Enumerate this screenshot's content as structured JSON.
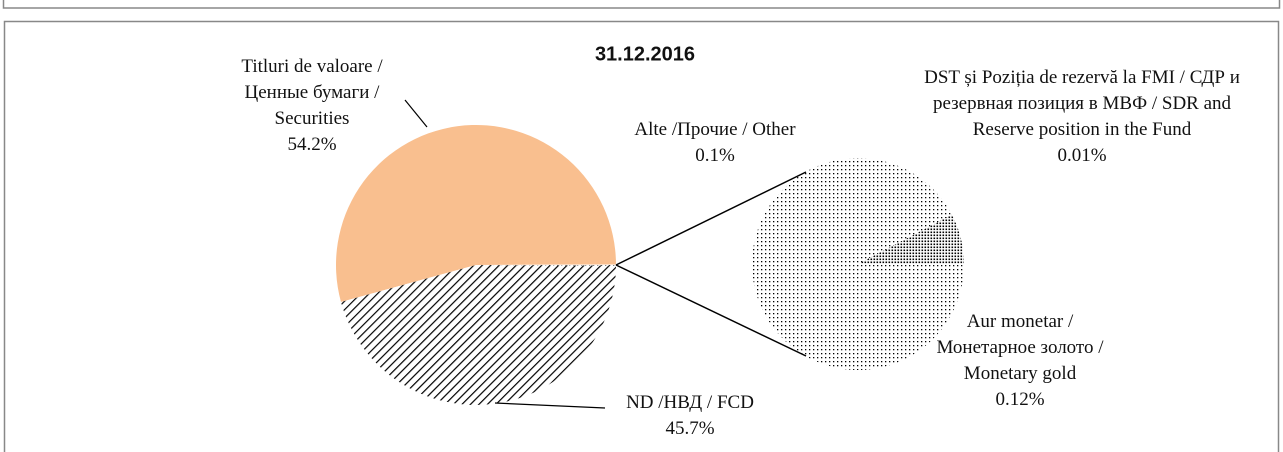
{
  "chart_data": {
    "type": "pie",
    "title": "31.12.2016",
    "categories": [
      "Titluri de valoare / Ценные бумаги / Securities",
      "ND /НВД / FCD",
      "Alte /Прочие / Other"
    ],
    "values": [
      54.2,
      45.7,
      0.1
    ],
    "value_labels": [
      "54.2%",
      "45.7%",
      "0.1%"
    ],
    "colors": [
      "#f9bf8f",
      "#8b2b2b",
      "#a0302f"
    ],
    "patterns": [
      "solid",
      "hatch",
      "dots"
    ],
    "secondary": {
      "categories": [
        "DST și Poziția de rezervă la FMI / СДР и резервная позиция в МВФ / SDR and Reserve position in the Fund",
        "Aur monetar / Монетарное золото / Monetary gold"
      ],
      "values": [
        0.01,
        0.12
      ],
      "value_labels": [
        "0.01%",
        "0.12%"
      ],
      "colors": [
        "#a0302f",
        "#a0302f"
      ],
      "patterns": [
        "dense-dots",
        "dots"
      ]
    }
  }
}
